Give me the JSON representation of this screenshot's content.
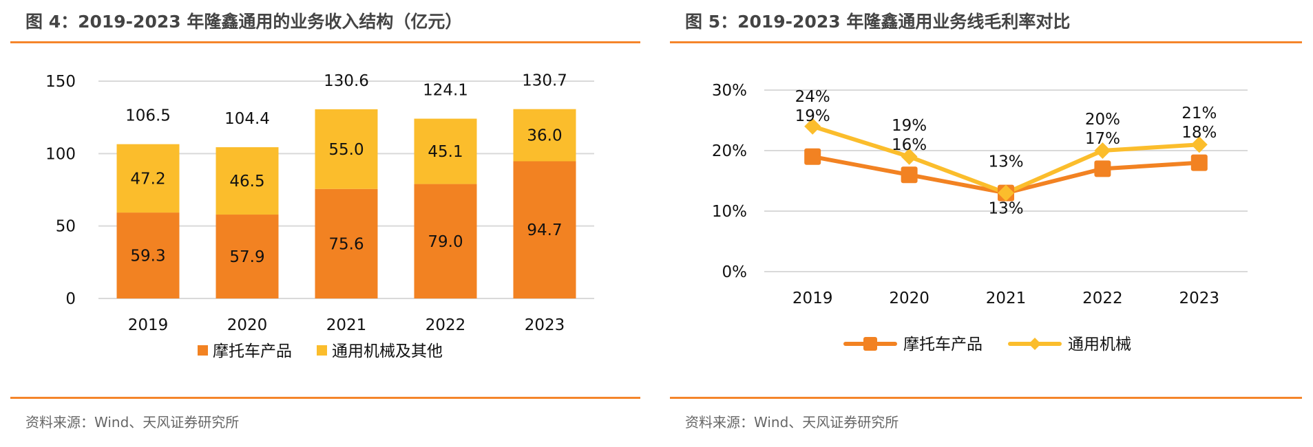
{
  "colors": {
    "accent": "#f5852a",
    "moto": "#f28222",
    "general": "#fbbd2c",
    "grid": "#d9d9d9",
    "title_text": "#444444",
    "source_text": "#666666"
  },
  "left": {
    "title": "图 4：2019-2023 年隆鑫通用的业务收入结构（亿元）",
    "source": "资料来源：Wind、天风证券研究所"
  },
  "right": {
    "title": "图 5：2019-2023 年隆鑫通用业务线毛利率对比",
    "source": "资料来源：Wind、天风证券研究所"
  },
  "chart_data": [
    {
      "type": "bar",
      "stacked": true,
      "title": "2019-2023 年隆鑫通用的业务收入结构（亿元）",
      "xlabel": "",
      "ylabel": "",
      "categories": [
        "2019",
        "2020",
        "2021",
        "2022",
        "2023"
      ],
      "series": [
        {
          "name": "摩托车产品",
          "color": "#f28222",
          "values": [
            59.3,
            57.9,
            75.6,
            79.0,
            94.7
          ],
          "labels": [
            "59.3",
            "57.9",
            "75.6",
            "79.0",
            "94.7"
          ]
        },
        {
          "name": "通用机械及其他",
          "color": "#fbbd2c",
          "values": [
            47.2,
            46.5,
            55.0,
            45.1,
            36.0
          ],
          "labels": [
            "47.2",
            "46.5",
            "55.0",
            "45.1",
            "36.0"
          ]
        }
      ],
      "totals": [
        106.5,
        104.4,
        130.6,
        124.1,
        130.7
      ],
      "total_labels": [
        "106.5",
        "104.4",
        "130.6",
        "124.1",
        "130.7"
      ],
      "ylim": [
        0,
        150
      ],
      "yticks": [
        0,
        50,
        100,
        150
      ],
      "ytick_labels": [
        "0",
        "50",
        "100",
        "150"
      ],
      "grid": true,
      "legend": "bottom-center"
    },
    {
      "type": "line",
      "title": "2019-2023 年隆鑫通用业务线毛利率对比",
      "xlabel": "",
      "ylabel": "",
      "categories": [
        "2019",
        "2020",
        "2021",
        "2022",
        "2023"
      ],
      "series": [
        {
          "name": "摩托车产品",
          "color": "#f28222",
          "marker": "square",
          "values": [
            0.19,
            0.16,
            0.13,
            0.17,
            0.18
          ],
          "labels": [
            "19%",
            "16%",
            "13%",
            "17%",
            "18%"
          ]
        },
        {
          "name": "通用机械",
          "color": "#fbbd2c",
          "marker": "diamond",
          "values": [
            0.24,
            0.19,
            0.13,
            0.2,
            0.21
          ],
          "labels": [
            "24%",
            "19%",
            "13%",
            "20%",
            "21%"
          ]
        }
      ],
      "ylim": [
        0,
        0.3
      ],
      "yticks": [
        0,
        0.1,
        0.2,
        0.3
      ],
      "ytick_labels": [
        "0%",
        "10%",
        "20%",
        "30%"
      ],
      "grid": true,
      "legend": "bottom-center"
    }
  ]
}
